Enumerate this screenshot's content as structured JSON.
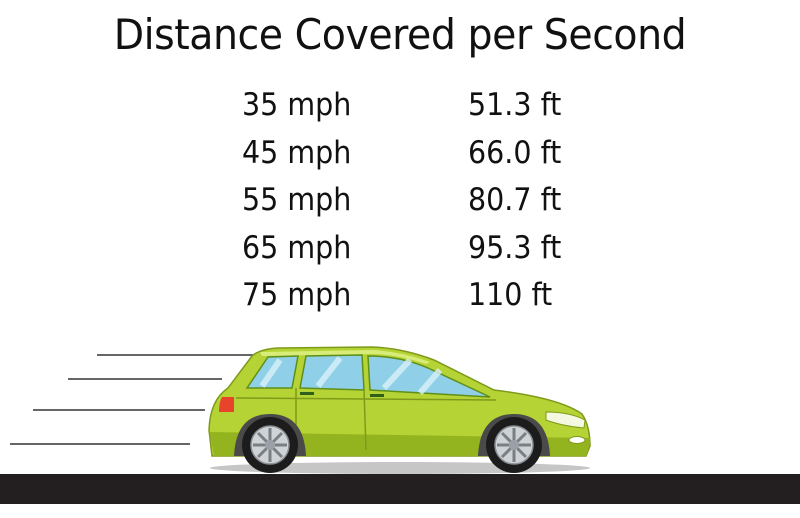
{
  "title": "Distance Covered per Second",
  "rows": [
    {
      "speed": "35 mph",
      "distance": "51.3 ft"
    },
    {
      "speed": "45 mph",
      "distance": "66.0 ft"
    },
    {
      "speed": "55 mph",
      "distance": "80.7 ft"
    },
    {
      "speed": "65 mph",
      "distance": "95.3 ft"
    },
    {
      "speed": "75 mph",
      "distance": "110 ft"
    }
  ],
  "illustration": {
    "subject": "car-icon",
    "car_color": "#b5d334",
    "car_shade": "#93b41f",
    "window_color": "#8fd0e8",
    "road_color": "#231f20",
    "speed_line_color": "#333333"
  }
}
